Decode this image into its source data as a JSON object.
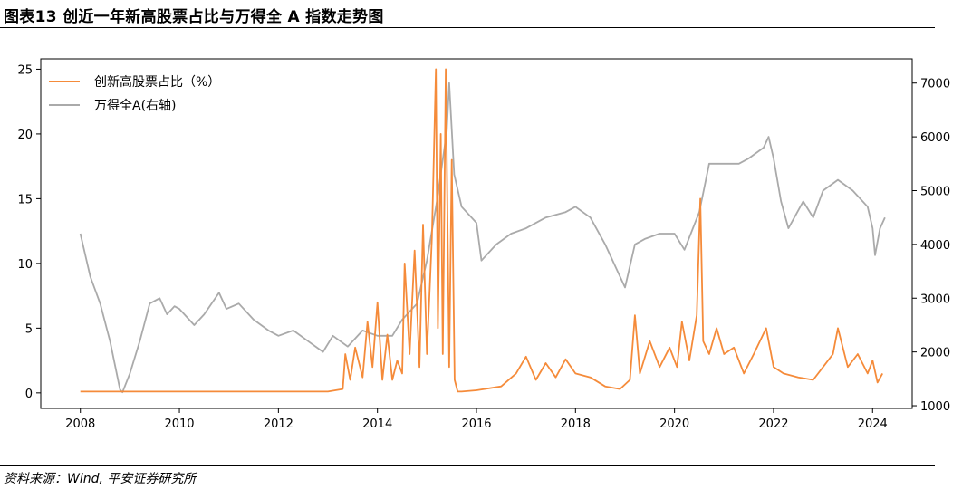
{
  "header": {
    "title": "图表13    创近一年新高股票占比与万得全 A 指数走势图"
  },
  "source": {
    "text": "资料来源：Wind, 平安证券研究所"
  },
  "colors": {
    "primary": "#f58b3a",
    "secondary": "#aaaaaa"
  },
  "chart_data": {
    "type": "line",
    "title": "",
    "xlabel": "",
    "ylabel": "",
    "x_ticks": [
      "2008",
      "2010",
      "2012",
      "2014",
      "2016",
      "2018",
      "2020",
      "2022",
      "2024"
    ],
    "y_left_ticks": [
      "0",
      "5",
      "10",
      "15",
      "20",
      "25"
    ],
    "y_right_ticks": [
      "1000",
      "2000",
      "3000",
      "4000",
      "5000",
      "6000",
      "7000"
    ],
    "xlim": [
      2007.2,
      2024.8
    ],
    "ylim_left": [
      -1.2,
      25.8
    ],
    "ylim_right": [
      950,
      7450
    ],
    "legend_position": "top-left",
    "grid": false,
    "series": [
      {
        "name": "创新高股票占比（%）",
        "axis": "left",
        "color": "#f58b3a",
        "x": [
          2008.0,
          2009.0,
          2010.0,
          2011.0,
          2012.0,
          2013.0,
          2013.3,
          2013.35,
          2013.45,
          2013.55,
          2013.7,
          2013.8,
          2013.9,
          2014.0,
          2014.1,
          2014.2,
          2014.3,
          2014.4,
          2014.5,
          2014.55,
          2014.65,
          2014.75,
          2014.85,
          2014.92,
          2015.0,
          2015.1,
          2015.18,
          2015.22,
          2015.28,
          2015.32,
          2015.38,
          2015.45,
          2015.5,
          2015.56,
          2015.62,
          2015.7,
          2016.0,
          2016.5,
          2016.8,
          2017.0,
          2017.2,
          2017.4,
          2017.6,
          2017.8,
          2018.0,
          2018.3,
          2018.6,
          2018.9,
          2019.1,
          2019.2,
          2019.3,
          2019.5,
          2019.7,
          2019.9,
          2020.05,
          2020.15,
          2020.3,
          2020.45,
          2020.52,
          2020.58,
          2020.7,
          2020.85,
          2021.0,
          2021.2,
          2021.4,
          2021.6,
          2021.85,
          2022.0,
          2022.2,
          2022.5,
          2022.8,
          2023.0,
          2023.2,
          2023.3,
          2023.5,
          2023.7,
          2023.9,
          2024.0,
          2024.1,
          2024.2
        ],
        "values": [
          0.1,
          0.1,
          0.1,
          0.1,
          0.1,
          0.1,
          0.3,
          3.0,
          1.0,
          3.5,
          1.2,
          5.5,
          2.0,
          7.0,
          1.0,
          4.5,
          1.0,
          2.5,
          1.5,
          10.0,
          3.0,
          11.0,
          2.0,
          13.0,
          3.0,
          12.0,
          25.0,
          5.0,
          20.0,
          3.0,
          25.0,
          2.0,
          18.0,
          1.0,
          0.1,
          0.1,
          0.2,
          0.5,
          1.5,
          2.8,
          1.0,
          2.3,
          1.2,
          2.6,
          1.5,
          1.2,
          0.5,
          0.3,
          1.0,
          6.0,
          1.5,
          4.0,
          2.0,
          3.5,
          2.0,
          5.5,
          2.5,
          6.0,
          15.0,
          4.0,
          3.0,
          5.0,
          3.0,
          3.5,
          1.5,
          3.0,
          5.0,
          2.0,
          1.5,
          1.2,
          1.0,
          2.0,
          3.0,
          5.0,
          2.0,
          3.0,
          1.5,
          2.5,
          0.8,
          1.5
        ]
      },
      {
        "name": "万得全A(右轴)",
        "axis": "right",
        "color": "#aaaaaa",
        "x": [
          2008.0,
          2008.1,
          2008.2,
          2008.4,
          2008.6,
          2008.8,
          2008.85,
          2009.0,
          2009.2,
          2009.4,
          2009.6,
          2009.75,
          2009.9,
          2010.0,
          2010.3,
          2010.5,
          2010.8,
          2010.95,
          2011.2,
          2011.5,
          2011.8,
          2012.0,
          2012.3,
          2012.6,
          2012.9,
          2013.1,
          2013.4,
          2013.7,
          2014.0,
          2014.3,
          2014.5,
          2014.8,
          2015.0,
          2015.2,
          2015.4,
          2015.45,
          2015.55,
          2015.7,
          2016.0,
          2016.1,
          2016.4,
          2016.7,
          2017.0,
          2017.4,
          2017.8,
          2018.0,
          2018.3,
          2018.6,
          2018.85,
          2019.0,
          2019.2,
          2019.4,
          2019.7,
          2020.0,
          2020.2,
          2020.5,
          2020.7,
          2021.0,
          2021.3,
          2021.5,
          2021.8,
          2021.9,
          2022.0,
          2022.15,
          2022.3,
          2022.6,
          2022.8,
          2023.0,
          2023.3,
          2023.6,
          2023.9,
          2024.0,
          2024.05,
          2024.15,
          2024.25
        ],
        "values": [
          4200,
          3800,
          3400,
          2900,
          2200,
          1300,
          1250,
          1600,
          2200,
          2900,
          3000,
          2700,
          2850,
          2800,
          2500,
          2700,
          3100,
          2800,
          2900,
          2600,
          2400,
          2300,
          2400,
          2200,
          2000,
          2300,
          2100,
          2400,
          2300,
          2300,
          2600,
          2900,
          3700,
          4800,
          6100,
          7000,
          5300,
          4700,
          4400,
          3700,
          4000,
          4200,
          4300,
          4500,
          4600,
          4700,
          4500,
          4000,
          3500,
          3200,
          4000,
          4100,
          4200,
          4200,
          3900,
          4600,
          5500,
          5500,
          5500,
          5600,
          5800,
          6000,
          5600,
          4800,
          4300,
          4800,
          4500,
          5000,
          5200,
          5000,
          4700,
          4300,
          3800,
          4300,
          4500
        ]
      }
    ]
  }
}
